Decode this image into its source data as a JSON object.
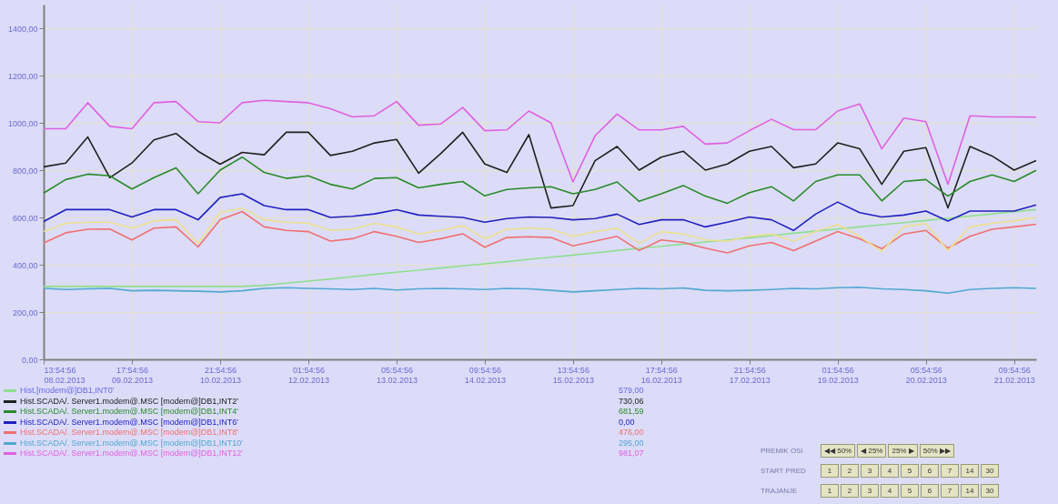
{
  "chart_data": {
    "type": "line",
    "x": [
      "2013-02-08T13:54",
      "2013-02-08T20:54",
      "2013-02-09T03:54",
      "2013-02-09T10:54",
      "2013-02-09T17:54",
      "2013-02-10T00:54",
      "2013-02-10T07:54",
      "2013-02-10T14:54",
      "2013-02-10T21:54",
      "2013-02-11T04:54",
      "2013-02-11T11:54",
      "2013-02-11T18:54",
      "2013-02-12T01:54",
      "2013-02-12T08:54",
      "2013-02-12T15:54",
      "2013-02-12T22:54",
      "2013-02-13T05:54",
      "2013-02-13T12:54",
      "2013-02-13T19:54",
      "2013-02-14T02:54",
      "2013-02-14T09:54",
      "2013-02-14T16:54",
      "2013-02-14T23:54",
      "2013-02-15T06:54",
      "2013-02-15T13:54",
      "2013-02-15T20:54",
      "2013-02-16T03:54",
      "2013-02-16T10:54",
      "2013-02-16T17:54",
      "2013-02-17T00:54",
      "2013-02-17T07:54",
      "2013-02-17T14:54",
      "2013-02-17T21:54",
      "2013-02-18T04:54",
      "2013-02-18T11:54",
      "2013-02-18T18:54",
      "2013-02-19T01:54",
      "2013-02-19T08:54",
      "2013-02-19T15:54",
      "2013-02-19T22:54",
      "2013-02-20T05:54",
      "2013-02-20T12:54",
      "2013-02-20T19:54",
      "2013-02-21T02:54",
      "2013-02-21T09:54",
      "2013-02-21T16:54"
    ],
    "series": [
      {
        "name": "Hist.[modem@]DB1,INT0'",
        "color": "#8fdf8f",
        "values": [
          308,
          308,
          308,
          308,
          308,
          308,
          308,
          308,
          308,
          308,
          313,
          322,
          331,
          340,
          349,
          359,
          368,
          377,
          386,
          395,
          404,
          413,
          423,
          432,
          441,
          450,
          460,
          469,
          478,
          487,
          496,
          505,
          514,
          523,
          533,
          542,
          551,
          560,
          569,
          578,
          587,
          596,
          606,
          615,
          624,
          633
        ]
      },
      {
        "name": "Hist.SCADA/. Server1.modem@.MSC [modem@]DB1,INT2'",
        "color": "#202020",
        "values": [
          814,
          830,
          940,
          768,
          830,
          928,
          955,
          880,
          825,
          875,
          865,
          960,
          960,
          862,
          880,
          915,
          930,
          787,
          870,
          960,
          826,
          790,
          950,
          640,
          650,
          840,
          900,
          800,
          855,
          880,
          800,
          826,
          880,
          900,
          810,
          826,
          915,
          890,
          740,
          880,
          895,
          640,
          900,
          860,
          800,
          840
        ]
      },
      {
        "name": "Hist.SCADA/. Server1.modem@.MSC [modem@]DB1,INT4'",
        "color": "#2a8a2a",
        "values": [
          703,
          760,
          783,
          776,
          720,
          768,
          810,
          700,
          800,
          855,
          790,
          765,
          776,
          740,
          720,
          765,
          768,
          725,
          740,
          752,
          691,
          718,
          725,
          730,
          700,
          718,
          750,
          668,
          700,
          735,
          690,
          660,
          705,
          730,
          670,
          752,
          780,
          780,
          670,
          752,
          760,
          690,
          752,
          780,
          752,
          799
        ]
      },
      {
        "name": "Hist.SCADA/. Server1.modem@.MSC [modem@]DB1,INT6'",
        "color": "#2020c0",
        "values": [
          583,
          633,
          633,
          633,
          602,
          633,
          633,
          590,
          684,
          700,
          650,
          633,
          633,
          600,
          605,
          615,
          633,
          610,
          605,
          600,
          580,
          595,
          602,
          600,
          590,
          595,
          614,
          570,
          590,
          590,
          560,
          580,
          602,
          590,
          545,
          614,
          665,
          620,
          602,
          610,
          627,
          585,
          627,
          627,
          627,
          653
        ]
      },
      {
        "name": "Hist.SCADA/. Server1.modem@.MSC [modem@]DB1,INT8'",
        "color": "#f07070",
        "values": [
          492,
          535,
          550,
          551,
          505,
          555,
          560,
          475,
          590,
          625,
          560,
          545,
          540,
          500,
          510,
          540,
          520,
          494,
          510,
          531,
          474,
          515,
          518,
          515,
          480,
          500,
          520,
          460,
          505,
          494,
          470,
          450,
          480,
          494,
          460,
          500,
          540,
          510,
          468,
          530,
          545,
          470,
          520,
          550,
          560,
          571
        ]
      },
      {
        "name": "Hist.SCADA/. Server1.modem@.MSC [modem@]DB1,INT10'",
        "color": "#50a8d0",
        "values": [
          300,
          295,
          298,
          300,
          290,
          292,
          290,
          288,
          285,
          290,
          300,
          303,
          300,
          298,
          295,
          300,
          293,
          298,
          300,
          298,
          295,
          300,
          298,
          292,
          285,
          290,
          295,
          300,
          298,
          302,
          292,
          290,
          292,
          295,
          300,
          298,
          303,
          305,
          298,
          295,
          290,
          280,
          295,
          300,
          303,
          300
        ]
      },
      {
        "name": "Hist.SCADA/. Server1.modem@.MSC [modem@]DB1,INT12'",
        "color": "#e060e0",
        "values": [
          975,
          975,
          1085,
          985,
          975,
          1085,
          1090,
          1005,
          1000,
          1085,
          1095,
          1090,
          1085,
          1060,
          1025,
          1030,
          1090,
          990,
          995,
          1065,
          967,
          970,
          1050,
          1000,
          750,
          945,
          1037,
          970,
          970,
          985,
          910,
          915,
          967,
          1015,
          971,
          971,
          1050,
          1080,
          890,
          1020,
          1005,
          740,
          1030,
          1025,
          1025,
          1024
        ]
      },
      {
        "color": "#ece08c",
        "values": [
          540,
          575,
          580,
          580,
          555,
          585,
          590,
          490,
          620,
          640,
          590,
          580,
          575,
          545,
          550,
          575,
          560,
          530,
          545,
          565,
          510,
          550,
          555,
          550,
          520,
          540,
          555,
          490,
          540,
          530,
          505,
          500,
          520,
          530,
          500,
          540,
          570,
          520,
          455,
          560,
          575,
          460,
          560,
          575,
          585,
          600
        ]
      }
    ],
    "xlim": [
      "2013-02-08T13:54",
      "2013-02-21T16:54"
    ],
    "xticks": [
      {
        "value": "2013-02-08T13:54",
        "label": "13:54:56\n08.02.2013"
      },
      {
        "value": "2013-02-09T17:54",
        "label": "17:54:56\n09.02.2013"
      },
      {
        "value": "2013-02-10T21:54",
        "label": "21:54:56\n10.02.2013"
      },
      {
        "value": "2013-02-12T01:54",
        "label": "01:54:56\n12.02.2013"
      },
      {
        "value": "2013-02-13T05:54",
        "label": "05:54:56\n13.02.2013"
      },
      {
        "value": "2013-02-14T09:54",
        "label": "09:54:56\n14.02.2013"
      },
      {
        "value": "2013-02-15T13:54",
        "label": "13:54:56\n15.02.2013"
      },
      {
        "value": "2013-02-16T17:54",
        "label": "17:54:56\n16.02.2013"
      },
      {
        "value": "2013-02-17T21:54",
        "label": "21:54:56\n17.02.2013"
      },
      {
        "value": "2013-02-19T01:54",
        "label": "01:54:56\n19.02.2013"
      },
      {
        "value": "2013-02-20T05:54",
        "label": "05:54:56\n20.02.2013"
      },
      {
        "value": "2013-02-21T09:54",
        "label": "09:54:56\n21.02.2013"
      }
    ],
    "ylim": [
      0,
      1500
    ],
    "yticks": [
      {
        "value": 0,
        "label": "0,00"
      },
      {
        "value": 200,
        "label": "200,00"
      },
      {
        "value": 400,
        "label": "400,00"
      },
      {
        "value": 600,
        "label": "600,00"
      },
      {
        "value": 800,
        "label": "800,00"
      },
      {
        "value": 1000,
        "label": "1000,00"
      },
      {
        "value": 1200,
        "label": "1200,00"
      },
      {
        "value": 1400,
        "label": "1400,00"
      }
    ],
    "grid": true,
    "legend": "bottom left",
    "annotations": [
      "579,00",
      "730,06",
      "681,59",
      "0,00",
      "476,00",
      "295,00",
      "981,07",
      "PREMIK OSI",
      "◀◀ 50%",
      "◀ 25%",
      "25% ▶",
      "50% ▶▶",
      "START PRED",
      "1",
      "2",
      "3",
      "4",
      "5",
      "6",
      "7",
      "14",
      "30",
      "TRAJANJE",
      "1",
      "2",
      "3",
      "4",
      "5",
      "6",
      "7",
      "14",
      "30"
    ]
  }
}
